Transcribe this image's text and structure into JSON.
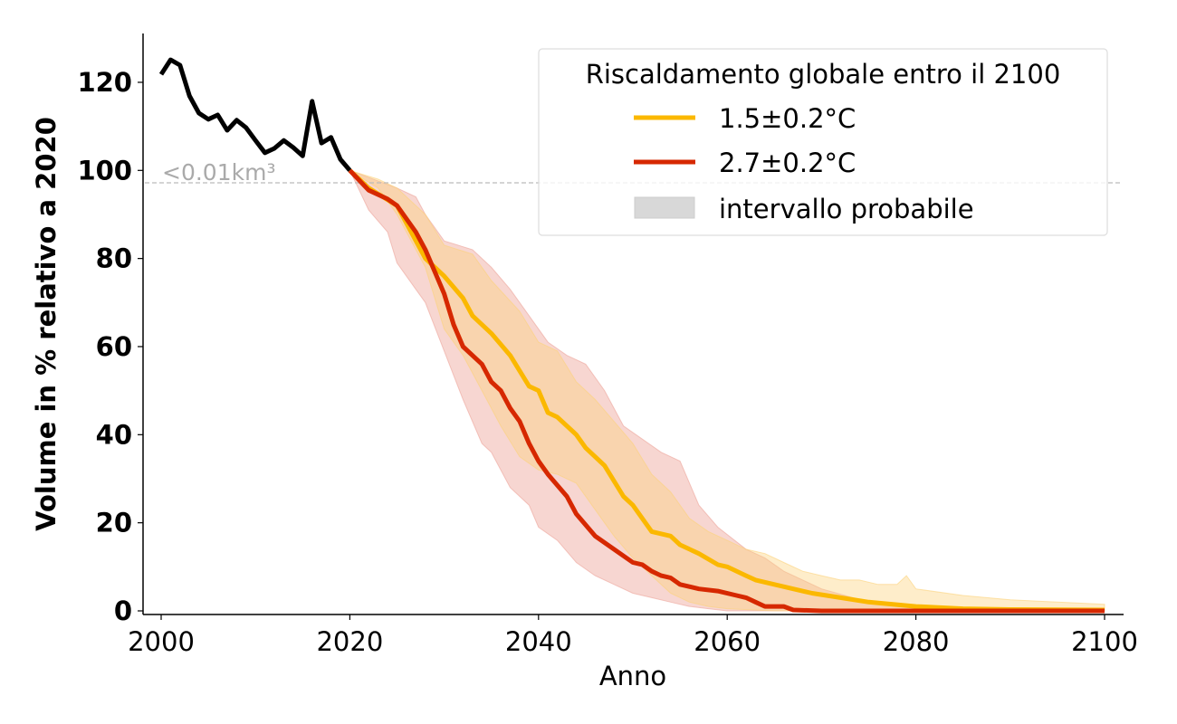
{
  "chart_data": {
    "type": "line",
    "title": "",
    "xlabel": "Anno",
    "ylabel": "Volume in % relativo a 2020",
    "xlim": [
      1998.3,
      2102
    ],
    "ylim": [
      -0.7,
      131
    ],
    "xticks": [
      2000,
      2020,
      2040,
      2060,
      2080,
      2100
    ],
    "yticks": [
      0,
      20,
      40,
      60,
      80,
      100,
      120
    ],
    "grid": false,
    "legend": {
      "title": "Riscaldamento globale entro il 2100",
      "placement": "top-right",
      "entries": [
        "1.5±0.2°C",
        "2.7±0.2°C",
        "intervallo probabile"
      ]
    },
    "threshold": {
      "y": 97.2,
      "label": "<0.01km³",
      "color": "#aaaaaa"
    },
    "historical": {
      "color": "#000000",
      "x": [
        2000,
        2001,
        2002,
        2003,
        2004,
        2005,
        2006,
        2007,
        2008,
        2009,
        2010,
        2011,
        2012,
        2013,
        2014,
        2015,
        2016,
        2017,
        2018,
        2019,
        2020
      ],
      "y": [
        121.8,
        125.1,
        123.9,
        116.9,
        113,
        111.6,
        112.6,
        109.1,
        111.4,
        109.7,
        106.8,
        104,
        105,
        106.8,
        105.2,
        103.3,
        115.7,
        106.2,
        107.5,
        102.5,
        100
      ]
    },
    "series": [
      {
        "name": "1.5±0.2°C",
        "color": "#fbb800",
        "band_color": "#fcd27a",
        "x": [
          2020,
          2022,
          2025,
          2028,
          2030,
          2032,
          2033,
          2035,
          2037,
          2039,
          2040,
          2041,
          2042,
          2044,
          2045,
          2047,
          2049,
          2050,
          2052,
          2054,
          2055,
          2057,
          2059,
          2060,
          2062,
          2063,
          2065,
          2067,
          2069,
          2072,
          2075,
          2080,
          2085,
          2090,
          2100
        ],
        "y": [
          100,
          96,
          92,
          80,
          76,
          71,
          67,
          63,
          58,
          51,
          50,
          45,
          44,
          40,
          37,
          33,
          26,
          24,
          18,
          17,
          15,
          13,
          10.5,
          10,
          8,
          7,
          6,
          5,
          4,
          3,
          2,
          1,
          0.5,
          0.3,
          0.2
        ],
        "band_upper": {
          "x": [
            2020,
            2023,
            2025,
            2028,
            2030,
            2033,
            2035,
            2038,
            2040,
            2042,
            2044,
            2046,
            2048,
            2050,
            2052,
            2054,
            2056,
            2058,
            2060,
            2062,
            2064,
            2066,
            2068,
            2070,
            2072,
            2074,
            2076,
            2078,
            2079,
            2080,
            2085,
            2090,
            2095,
            2100
          ],
          "y": [
            100,
            98,
            96,
            90,
            83,
            81,
            75,
            68,
            61,
            59,
            52,
            48,
            43,
            38,
            31,
            27,
            21,
            18,
            16,
            14,
            13,
            11,
            9,
            8,
            7,
            7,
            6,
            6,
            8,
            5,
            3.5,
            2.5,
            2,
            1.5
          ]
        },
        "band_lower": {
          "x": [
            2020,
            2023,
            2025,
            2028,
            2030,
            2032,
            2034,
            2036,
            2038,
            2040,
            2042,
            2044,
            2046,
            2048,
            2050,
            2052,
            2054,
            2056,
            2058,
            2060,
            2065,
            2100
          ],
          "y": [
            100,
            96,
            90,
            78,
            64,
            58,
            50,
            42,
            35,
            32,
            31,
            29,
            23,
            17,
            12,
            8,
            4,
            2,
            1,
            0.5,
            0,
            0
          ]
        }
      },
      {
        "name": "2.7±0.2°C",
        "color": "#d62800",
        "band_color": "#eda39a",
        "x": [
          2020,
          2022,
          2024,
          2025,
          2027,
          2028,
          2029,
          2030,
          2031,
          2032,
          2034,
          2035,
          2036,
          2037,
          2038,
          2039,
          2040,
          2041,
          2043,
          2044,
          2046,
          2048,
          2050,
          2051,
          2052,
          2053,
          2054,
          2055,
          2057,
          2059,
          2061,
          2062,
          2063,
          2064,
          2066,
          2067,
          2070,
          2100
        ],
        "y": [
          100,
          95.5,
          93.5,
          92,
          86,
          82,
          77,
          72,
          65,
          60,
          56,
          52,
          50,
          46,
          43,
          38,
          34,
          31,
          26,
          22,
          17,
          14,
          11,
          10.5,
          9,
          8,
          7.5,
          6,
          5,
          4.5,
          3.5,
          3,
          2,
          1,
          1,
          0.2,
          0,
          0
        ],
        "band_upper": {
          "x": [
            2020,
            2025,
            2027,
            2028,
            2029,
            2030,
            2033,
            2035,
            2037,
            2039,
            2041,
            2043,
            2045,
            2047,
            2049,
            2051,
            2053,
            2055,
            2057,
            2059,
            2062,
            2064,
            2066,
            2068,
            2070,
            2075,
            2080,
            2085,
            2100
          ],
          "y": [
            100,
            96,
            94,
            90,
            87,
            84,
            82,
            78,
            73,
            67,
            61,
            58,
            56,
            50,
            42,
            39,
            36,
            34,
            24,
            19,
            14,
            12,
            9,
            7,
            5,
            2,
            1,
            0.5,
            0.3
          ]
        },
        "band_lower": {
          "x": [
            2020,
            2022,
            2024,
            2025,
            2027,
            2028,
            2030,
            2032,
            2034,
            2035,
            2037,
            2039,
            2040,
            2042,
            2044,
            2046,
            2048,
            2050,
            2052,
            2054,
            2056,
            2058,
            2060,
            2100
          ],
          "y": [
            100,
            91,
            86,
            79,
            73,
            70,
            59,
            48,
            38,
            36,
            28,
            24,
            19,
            16,
            11,
            8,
            6,
            4,
            3,
            2,
            1,
            0.5,
            0,
            0
          ]
        }
      }
    ]
  }
}
